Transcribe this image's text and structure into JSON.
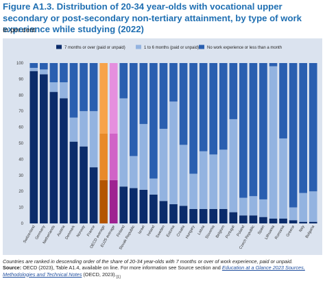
{
  "figure": {
    "title": "Figure A1.3. Distribution of 20-34 year-olds with vocational upper secondary or post-secondary non-tertiary attainment, by type of work experience while studying (2022)",
    "unit": "In per cent"
  },
  "footnote": {
    "note": "Countries are ranked in descending order of the share of 20-34 year-olds with 7 months or over of work experience, paid or unpaid.",
    "source_label": "Source:",
    "source_text_1": "OECD (2023), Table A1.4, available on line. For more information see Source section and",
    "source_link": "Education at a Glance 2023 Sources, Methodologies and Technical Notes",
    "source_text_2": "(OECD, 2023).",
    "source_sub": "[1]"
  },
  "chart_data": {
    "type": "bar",
    "stacked": true,
    "ylim": [
      0,
      100
    ],
    "yticks": [
      0,
      10,
      20,
      30,
      40,
      50,
      60,
      70,
      80,
      90,
      100
    ],
    "grid": false,
    "legend_position": "top-right",
    "categories": [
      "Switzerland",
      "Germany",
      "Netherlands",
      "Austria",
      "Denmark",
      "Norway",
      "France",
      "OECD average",
      "EU25 average",
      "Finland",
      "Slovak Republic",
      "Israel",
      "Ireland",
      "Sweden",
      "Estonia",
      "Croatia",
      "Hungary",
      "Latvia",
      "Slovenia",
      "Belgium",
      "Portugal",
      "Poland",
      "Czech Republic",
      "Spain",
      "Lithuania",
      "Romania",
      "Greece",
      "Italy",
      "Bulgaria"
    ],
    "highlight": {
      "OECD average": [
        "#b35500",
        "#e88a2a",
        "#f7a34a"
      ],
      "EU25 average": [
        "#9e2391",
        "#d063c7",
        "#e58fde"
      ]
    },
    "series": [
      {
        "name": "7 months or over (paid or unpaid)",
        "color": "#0b2c6b",
        "values": [
          95,
          93,
          82,
          78,
          51,
          48,
          35,
          27,
          27,
          23,
          22,
          21,
          18,
          14,
          12,
          11,
          9,
          9,
          9,
          9,
          7,
          5,
          5,
          4,
          3,
          3,
          2,
          1,
          1
        ]
      },
      {
        "name": "1 to 6 months (paid or unpaid)",
        "color": "#93b3e0",
        "values": [
          2,
          3,
          6,
          10,
          15,
          22,
          35,
          29,
          29,
          55,
          20,
          41,
          10,
          45,
          64,
          38,
          22,
          36,
          34,
          37,
          58,
          11,
          12,
          11,
          95,
          50,
          8,
          18,
          19
        ]
      },
      {
        "name": "No work experience or less than a month",
        "color": "#2a5fb0",
        "values": [
          3,
          4,
          12,
          12,
          34,
          30,
          30,
          44,
          44,
          22,
          58,
          38,
          72,
          41,
          24,
          51,
          69,
          55,
          57,
          54,
          35,
          84,
          83,
          85,
          2,
          47,
          90,
          81,
          80
        ]
      }
    ]
  }
}
